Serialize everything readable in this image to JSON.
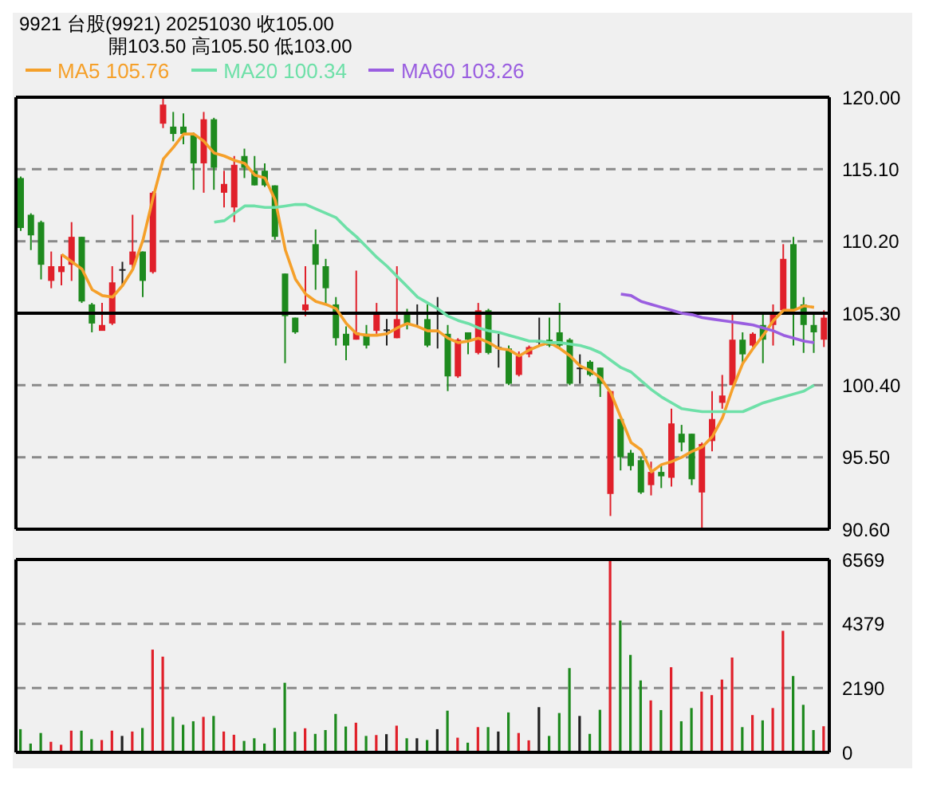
{
  "chart_data": [
    {
      "type": "candlestick",
      "title": "9921  台股(9921)  20251030  收105.00",
      "subtitle": "開103.50  高105.50  低103.00",
      "categories": [
        null,
        null,
        null,
        null,
        null,
        null,
        null,
        null,
        null,
        null,
        null,
        null,
        null,
        null,
        null,
        null,
        null,
        null,
        null,
        null,
        null,
        null,
        null,
        null,
        null,
        null,
        null,
        null,
        null,
        null,
        null,
        null,
        null,
        null,
        null,
        null,
        null,
        null,
        null,
        null,
        null,
        null,
        null,
        null,
        null,
        null,
        null,
        null,
        null,
        null,
        null,
        null,
        null,
        null,
        null,
        null,
        null,
        null,
        null,
        null,
        null,
        null,
        null,
        null,
        null,
        null,
        null,
        null,
        null,
        null,
        null,
        null,
        null,
        null,
        null,
        null,
        null,
        null,
        null,
        null
      ],
      "ohlc": [
        [
          114.5,
          114.6,
          110.9,
          111.1
        ],
        [
          112.0,
          112.1,
          109.6,
          110.6
        ],
        [
          111.5,
          111.6,
          107.6,
          108.6
        ],
        [
          107.5,
          109.5,
          107.0,
          108.5
        ],
        [
          108.1,
          109.3,
          107.2,
          108.5
        ],
        [
          108.6,
          111.5,
          107.5,
          110.5
        ],
        [
          110.5,
          110.5,
          106.0,
          106.1
        ],
        [
          105.9,
          106.0,
          104.0,
          104.6
        ],
        [
          104.1,
          106.0,
          104.1,
          104.5
        ],
        [
          104.6,
          108.5,
          104.5,
          107.4
        ],
        [
          108.3,
          108.8,
          107.1,
          108.3
        ],
        [
          108.6,
          112.0,
          108.3,
          109.5
        ],
        [
          109.5,
          109.5,
          106.4,
          107.5
        ],
        [
          108.1,
          113.6,
          108.0,
          113.5
        ],
        [
          118.2,
          119.9,
          117.9,
          119.5
        ],
        [
          118.0,
          119.0,
          117.0,
          117.5
        ],
        [
          118.0,
          118.9,
          116.8,
          117.5
        ],
        [
          117.4,
          117.6,
          113.7,
          115.5
        ],
        [
          115.5,
          119.0,
          113.5,
          118.5
        ],
        [
          118.5,
          118.6,
          113.7,
          115.2
        ],
        [
          113.5,
          115.0,
          112.5,
          114.1
        ],
        [
          112.5,
          116.0,
          111.5,
          115.4
        ],
        [
          116.0,
          116.5,
          114.5,
          115.2
        ],
        [
          115.0,
          116.0,
          114.0,
          114.0
        ],
        [
          115.0,
          115.5,
          113.9,
          114.0
        ],
        [
          114.0,
          114.0,
          110.3,
          110.5
        ],
        [
          108.0,
          108.0,
          101.9,
          105.1
        ],
        [
          105.0,
          105.0,
          103.9,
          104.0
        ],
        [
          105.5,
          108.5,
          105.1,
          105.9
        ],
        [
          110.0,
          111.0,
          106.9,
          108.6
        ],
        [
          108.5,
          109.0,
          105.9,
          107.0
        ],
        [
          105.9,
          106.4,
          103.1,
          103.6
        ],
        [
          103.9,
          104.4,
          102.1,
          103.1
        ],
        [
          103.5,
          108.2,
          103.5,
          104.0
        ],
        [
          103.9,
          104.5,
          102.9,
          103.1
        ],
        [
          104.1,
          106.0,
          103.9,
          105.4
        ],
        [
          104.2,
          104.9,
          103.1,
          104.2
        ],
        [
          103.6,
          108.5,
          103.6,
          104.9
        ],
        [
          105.4,
          105.6,
          104.2,
          104.6
        ],
        [
          105.4,
          105.9,
          104.4,
          105.4
        ],
        [
          104.9,
          105.9,
          103.0,
          103.1
        ],
        [
          105.3,
          106.4,
          102.9,
          105.3
        ],
        [
          103.9,
          104.5,
          100.0,
          101.0
        ],
        [
          101.0,
          103.6,
          100.9,
          103.5
        ],
        [
          104.0,
          104.0,
          102.5,
          103.5
        ],
        [
          102.6,
          106.0,
          102.5,
          105.5
        ],
        [
          105.5,
          105.6,
          102.5,
          102.6
        ],
        [
          103.0,
          103.9,
          101.6,
          103.0
        ],
        [
          102.9,
          103.1,
          100.4,
          100.5
        ],
        [
          101.1,
          102.7,
          101.0,
          102.4
        ],
        [
          102.5,
          103.1,
          102.3,
          103.0
        ],
        [
          103.4,
          105.0,
          103.1,
          103.4
        ],
        [
          103.5,
          105.0,
          103.0,
          103.1
        ],
        [
          104.0,
          106.0,
          103.0,
          103.1
        ],
        [
          103.5,
          103.6,
          100.4,
          100.5
        ],
        [
          101.6,
          102.5,
          100.5,
          101.6
        ],
        [
          102.0,
          102.1,
          101.0,
          101.1
        ],
        [
          101.6,
          101.6,
          99.6,
          100.5
        ],
        [
          93.0,
          100.0,
          91.5,
          100.0
        ],
        [
          98.1,
          98.1,
          94.6,
          95.5
        ],
        [
          95.8,
          96.0,
          94.6,
          94.9
        ],
        [
          95.3,
          95.5,
          93.0,
          93.1
        ],
        [
          93.6,
          95.2,
          92.9,
          94.5
        ],
        [
          94.5,
          95.0,
          93.4,
          94.2
        ],
        [
          94.1,
          98.8,
          93.5,
          97.8
        ],
        [
          97.1,
          97.7,
          95.9,
          96.5
        ],
        [
          97.1,
          97.1,
          93.6,
          94.0
        ],
        [
          93.1,
          96.5,
          90.7,
          96.4
        ],
        [
          96.6,
          100.0,
          95.9,
          98.1
        ],
        [
          99.2,
          101.1,
          98.8,
          99.7
        ],
        [
          100.4,
          105.3,
          100.4,
          103.5
        ],
        [
          103.5,
          104.0,
          101.9,
          102.5
        ],
        [
          103.1,
          104.0,
          103.0,
          103.9
        ],
        [
          104.5,
          105.3,
          101.9,
          103.5
        ],
        [
          104.5,
          105.9,
          103.1,
          105.4
        ],
        [
          105.5,
          110.0,
          105.3,
          109.0
        ],
        [
          110.0,
          110.5,
          103.1,
          105.5
        ],
        [
          105.9,
          106.4,
          102.6,
          104.5
        ],
        [
          104.5,
          105.3,
          102.6,
          104.0
        ],
        [
          103.5,
          105.5,
          103.0,
          105.0
        ]
      ],
      "colors": [
        "#1e8a1e",
        "#1e8a1e",
        "#1e8a1e",
        "#e0202a",
        "#e0202a",
        "#e0202a",
        "#1e8a1e",
        "#1e8a1e",
        "#e0202a",
        "#e0202a",
        "#202020",
        "#e0202a",
        "#1e8a1e",
        "#e0202a",
        "#e0202a",
        "#1e8a1e",
        "#1e8a1e",
        "#1e8a1e",
        "#e0202a",
        "#1e8a1e",
        "#e0202a",
        "#e0202a",
        "#1e8a1e",
        "#1e8a1e",
        "#1e8a1e",
        "#1e8a1e",
        "#1e8a1e",
        "#1e8a1e",
        "#e0202a",
        "#1e8a1e",
        "#1e8a1e",
        "#1e8a1e",
        "#1e8a1e",
        "#e0202a",
        "#1e8a1e",
        "#e0202a",
        "#202020",
        "#e0202a",
        "#1e8a1e",
        "#202020",
        "#1e8a1e",
        "#202020",
        "#1e8a1e",
        "#e0202a",
        "#1e8a1e",
        "#e0202a",
        "#1e8a1e",
        "#202020",
        "#1e8a1e",
        "#e0202a",
        "#e0202a",
        "#202020",
        "#1e8a1e",
        "#1e8a1e",
        "#1e8a1e",
        "#202020",
        "#1e8a1e",
        "#1e8a1e",
        "#e0202a",
        "#1e8a1e",
        "#1e8a1e",
        "#1e8a1e",
        "#e0202a",
        "#1e8a1e",
        "#e0202a",
        "#1e8a1e",
        "#1e8a1e",
        "#e0202a",
        "#e0202a",
        "#e0202a",
        "#e0202a",
        "#1e8a1e",
        "#e0202a",
        "#1e8a1e",
        "#e0202a",
        "#e0202a",
        "#1e8a1e",
        "#1e8a1e",
        "#1e8a1e",
        "#e0202a"
      ],
      "series": [
        {
          "name": "MA5 105.76",
          "type": "line",
          "color": "#f5a02a",
          "values": [
            null,
            null,
            null,
            null,
            109.3,
            108.8,
            108.3,
            106.9,
            106.5,
            106.4,
            107.2,
            108.3,
            110.3,
            113.2,
            115.8,
            116.6,
            117.5,
            117.5,
            117.0,
            116.2,
            116.0,
            115.7,
            115.5,
            114.7,
            114.5,
            113.0,
            109.6,
            107.6,
            106.6,
            106.1,
            105.9,
            105.6,
            104.6,
            103.9,
            103.8,
            103.8,
            103.9,
            104.3,
            104.6,
            104.4,
            104.1,
            104.1,
            103.6,
            103.3,
            103.4,
            103.6,
            103.3,
            102.9,
            102.8,
            102.4,
            102.8,
            103.1,
            103.3,
            102.9,
            102.4,
            101.7,
            101.4,
            100.9,
            99.9,
            98.2,
            96.5,
            96.0,
            94.5,
            95.0,
            95.2,
            95.5,
            95.9,
            96.2,
            96.9,
            98.2,
            100.2,
            101.9,
            102.9,
            103.8,
            104.8,
            105.5,
            105.5,
            105.8,
            105.7,
            null
          ]
        },
        {
          "name": "MA20 100.34",
          "type": "line",
          "color": "#6ee0a8",
          "values": [
            null,
            null,
            null,
            null,
            null,
            null,
            null,
            null,
            null,
            null,
            null,
            null,
            null,
            null,
            null,
            null,
            null,
            null,
            null,
            111.5,
            111.6,
            112.1,
            112.6,
            112.6,
            112.5,
            112.5,
            112.6,
            112.7,
            112.7,
            112.4,
            112.1,
            111.8,
            111.1,
            110.5,
            109.8,
            109.1,
            108.5,
            107.8,
            107.1,
            106.4,
            106.0,
            105.6,
            105.1,
            104.8,
            104.6,
            104.3,
            104.1,
            104.0,
            103.8,
            103.6,
            103.4,
            103.4,
            103.3,
            103.3,
            103.2,
            103.1,
            102.9,
            102.6,
            102.1,
            101.6,
            101.3,
            100.7,
            100.1,
            99.6,
            99.2,
            98.8,
            98.7,
            98.6,
            98.6,
            98.6,
            98.6,
            98.6,
            98.9,
            99.2,
            99.4,
            99.6,
            99.8,
            100.0,
            100.4,
            null
          ]
        },
        {
          "name": "MA60 103.26",
          "type": "line",
          "color": "#9a5ee0",
          "values": [
            null,
            null,
            null,
            null,
            null,
            null,
            null,
            null,
            null,
            null,
            null,
            null,
            null,
            null,
            null,
            null,
            null,
            null,
            null,
            null,
            null,
            null,
            null,
            null,
            null,
            null,
            null,
            null,
            null,
            null,
            null,
            null,
            null,
            null,
            null,
            null,
            null,
            null,
            null,
            null,
            null,
            null,
            null,
            null,
            null,
            null,
            null,
            null,
            null,
            null,
            null,
            null,
            null,
            null,
            null,
            null,
            null,
            null,
            null,
            106.6,
            106.5,
            106.1,
            105.9,
            105.7,
            105.5,
            105.3,
            105.2,
            105.0,
            104.9,
            104.8,
            104.7,
            104.6,
            104.5,
            104.3,
            104.1,
            103.8,
            103.6,
            103.4,
            103.3,
            null
          ]
        }
      ],
      "ylim": [
        90.6,
        120
      ],
      "yticks": [
        {
          "value": 90.6,
          "label": "90.60"
        },
        {
          "value": 95.5,
          "label": "95.50"
        },
        {
          "value": 100.4,
          "label": "100.40"
        },
        {
          "value": 105.3,
          "label": "105.30"
        },
        {
          "value": 110.2,
          "label": "110.20"
        },
        {
          "value": 115.1,
          "label": "115.10"
        },
        {
          "value": 120,
          "label": "120.00"
        }
      ],
      "grid": "y",
      "tick_labels": "y",
      "legend": "top left",
      "marker": "none",
      "line_style": "solid",
      "ref_lines": [
        {
          "axis": "y",
          "value": 105.3,
          "color": "#000000",
          "line_style": "solid"
        }
      ]
    },
    {
      "type": "bar",
      "categories": [
        null,
        null,
        null,
        null,
        null,
        null,
        null,
        null,
        null,
        null,
        null,
        null,
        null,
        null,
        null,
        null,
        null,
        null,
        null,
        null,
        null,
        null,
        null,
        null,
        null,
        null,
        null,
        null,
        null,
        null,
        null,
        null,
        null,
        null,
        null,
        null,
        null,
        null,
        null,
        null,
        null,
        null,
        null,
        null,
        null,
        null,
        null,
        null,
        null,
        null,
        null,
        null,
        null,
        null,
        null,
        null,
        null,
        null,
        null,
        null,
        null,
        null,
        null,
        null,
        null,
        null,
        null,
        null,
        null,
        null,
        null,
        null,
        null,
        null,
        null,
        null,
        null,
        null,
        null,
        null
      ],
      "values": [
        790,
        300,
        660,
        360,
        260,
        740,
        740,
        450,
        420,
        740,
        560,
        710,
        830,
        3500,
        3260,
        1210,
        940,
        1060,
        1210,
        1240,
        710,
        600,
        390,
        480,
        300,
        830,
        2370,
        700,
        820,
        630,
        760,
        1310,
        880,
        1010,
        560,
        590,
        620,
        910,
        480,
        480,
        420,
        790,
        1420,
        500,
        330,
        860,
        860,
        710,
        1360,
        660,
        410,
        1540,
        560,
        1340,
        2870,
        1240,
        630,
        1450,
        6569,
        4490,
        3320,
        2450,
        1770,
        1440,
        2900,
        1060,
        1510,
        2070,
        1950,
        2480,
        3230,
        860,
        1270,
        1090,
        1510,
        4140,
        2600,
        1620,
        760,
        890
      ],
      "colors": [
        "#1e8a1e",
        "#1e8a1e",
        "#1e8a1e",
        "#e0202a",
        "#e0202a",
        "#e0202a",
        "#1e8a1e",
        "#1e8a1e",
        "#e0202a",
        "#e0202a",
        "#202020",
        "#e0202a",
        "#1e8a1e",
        "#e0202a",
        "#e0202a",
        "#1e8a1e",
        "#1e8a1e",
        "#1e8a1e",
        "#e0202a",
        "#1e8a1e",
        "#e0202a",
        "#e0202a",
        "#1e8a1e",
        "#1e8a1e",
        "#1e8a1e",
        "#1e8a1e",
        "#1e8a1e",
        "#1e8a1e",
        "#e0202a",
        "#1e8a1e",
        "#1e8a1e",
        "#1e8a1e",
        "#1e8a1e",
        "#e0202a",
        "#1e8a1e",
        "#e0202a",
        "#202020",
        "#e0202a",
        "#1e8a1e",
        "#202020",
        "#1e8a1e",
        "#202020",
        "#1e8a1e",
        "#e0202a",
        "#1e8a1e",
        "#e0202a",
        "#1e8a1e",
        "#202020",
        "#1e8a1e",
        "#e0202a",
        "#e0202a",
        "#202020",
        "#1e8a1e",
        "#1e8a1e",
        "#1e8a1e",
        "#202020",
        "#1e8a1e",
        "#1e8a1e",
        "#e0202a",
        "#1e8a1e",
        "#1e8a1e",
        "#1e8a1e",
        "#e0202a",
        "#1e8a1e",
        "#e0202a",
        "#1e8a1e",
        "#1e8a1e",
        "#e0202a",
        "#e0202a",
        "#e0202a",
        "#e0202a",
        "#1e8a1e",
        "#e0202a",
        "#1e8a1e",
        "#e0202a",
        "#e0202a",
        "#1e8a1e",
        "#1e8a1e",
        "#1e8a1e",
        "#e0202a"
      ],
      "ylim": [
        0,
        6569
      ],
      "yticks": [
        0,
        2190,
        4379,
        6569
      ],
      "grid": "y",
      "tick_labels": "y"
    }
  ]
}
